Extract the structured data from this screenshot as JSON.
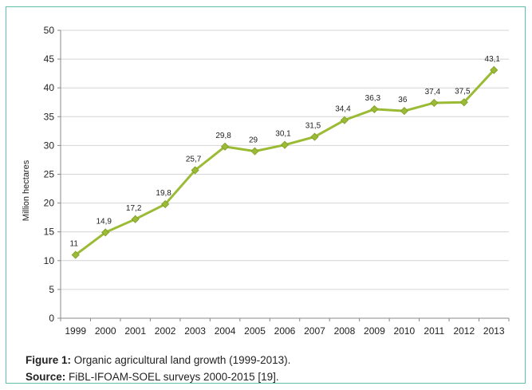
{
  "chart_data": {
    "type": "line",
    "categories": [
      "1999",
      "2000",
      "2001",
      "2002",
      "2003",
      "2004",
      "2005",
      "2006",
      "2007",
      "2008",
      "2009",
      "2010",
      "2011",
      "2012",
      "2013"
    ],
    "values": [
      11,
      14.9,
      17.2,
      19.8,
      25.7,
      29.8,
      29,
      30.1,
      31.5,
      34.4,
      36.3,
      36,
      37.4,
      37.5,
      43.1
    ],
    "data_labels": [
      "11",
      "14,9",
      "17,2",
      "19,8",
      "25,7",
      "29,8",
      "29",
      "30,1",
      "31,5",
      "34,4",
      "36,3",
      "36",
      "37,4",
      "37,5",
      "43,1"
    ],
    "ylabel": "Million hectares",
    "xlabel": "",
    "ylim": [
      0,
      50
    ],
    "yticks": [
      "0",
      "5",
      "10",
      "15",
      "20",
      "25",
      "30",
      "35",
      "40",
      "45",
      "50"
    ],
    "grid": true,
    "line_color": "#9bbb35",
    "marker_color": "#9bbb35"
  },
  "caption": {
    "figure_label": "Figure 1:",
    "figure_text": "Organic agricultural land growth (1999-2013).",
    "source_label": "Source:",
    "source_text": "FiBL-IFOAM-SOEL surveys 2000-2015 [19]."
  }
}
